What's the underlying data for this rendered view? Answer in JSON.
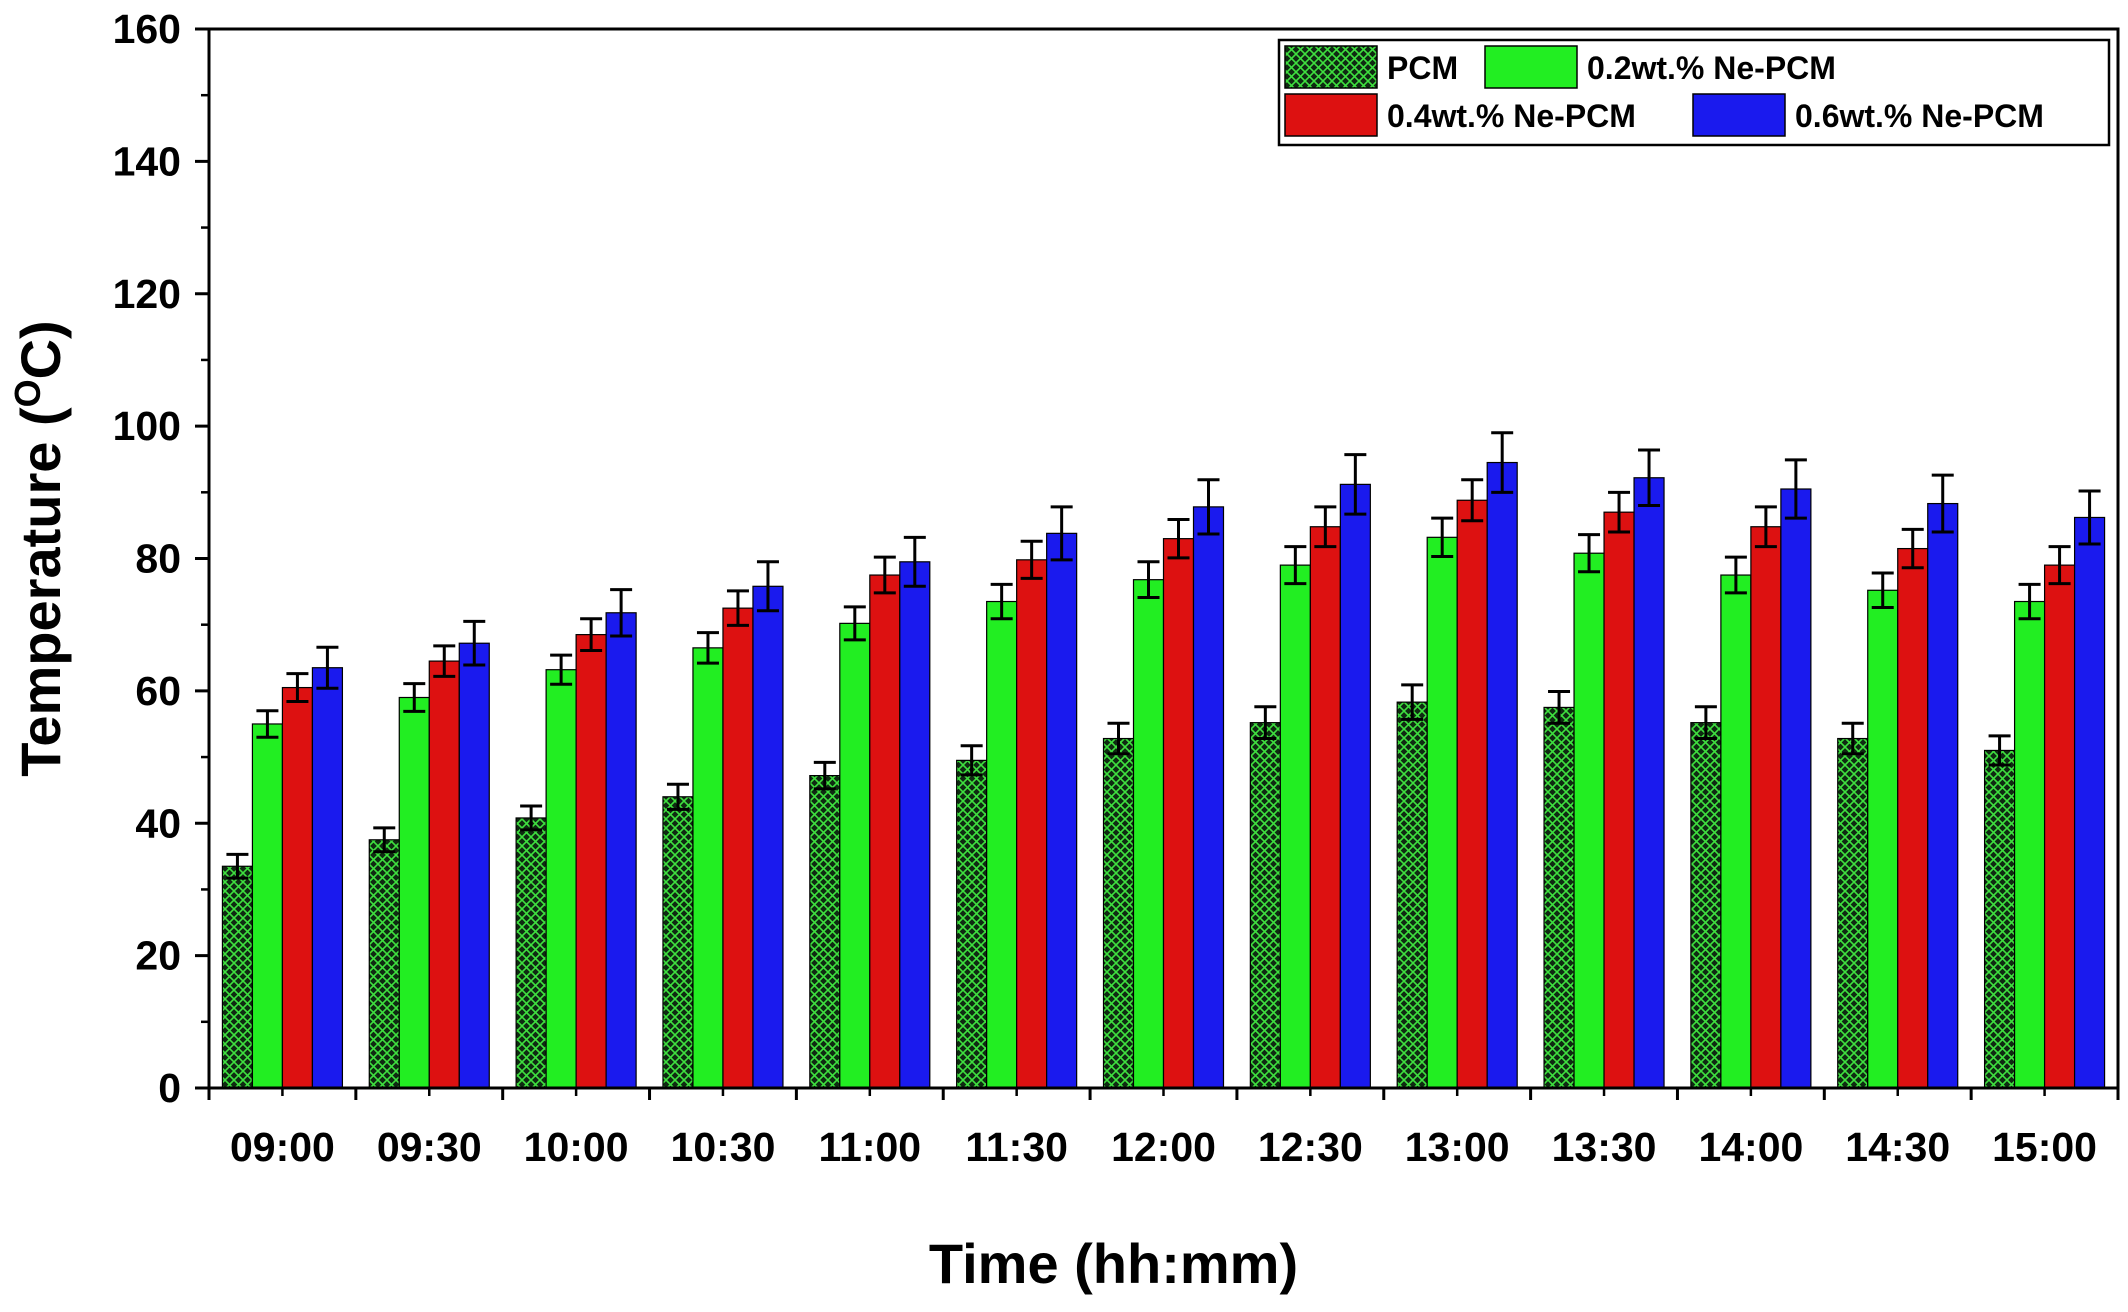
{
  "chart_data": {
    "type": "bar",
    "title": "",
    "xlabel": "Time (hh:mm)",
    "ylabel_main": "Temperature (",
    "ylabel_sup": "O",
    "ylabel_end": "C)",
    "ylim": [
      0,
      160
    ],
    "yticks": [
      "0",
      "20",
      "40",
      "60",
      "80",
      "100",
      "120",
      "140",
      "160"
    ],
    "ytick_values": [
      0,
      20,
      40,
      60,
      80,
      100,
      120,
      140,
      160
    ],
    "categories": [
      "09:00",
      "09:30",
      "10:00",
      "10:30",
      "11:00",
      "11:30",
      "12:00",
      "12:30",
      "13:00",
      "13:30",
      "14:00",
      "14:30",
      "15:00"
    ],
    "legend_position": "top-right",
    "legend_layout": "2x2 grid",
    "grid": false,
    "error_bars": true,
    "series": [
      {
        "name": "PCM",
        "color": "#1f7a2a",
        "pattern": "crosshatch-green-on-dark",
        "values": [
          33.5,
          37.5,
          40.8,
          44.0,
          47.2,
          49.5,
          52.8,
          55.2,
          58.3,
          57.5,
          55.2,
          52.8,
          51.0
        ],
        "errors": [
          1.8,
          1.8,
          1.8,
          1.9,
          2.0,
          2.2,
          2.3,
          2.4,
          2.6,
          2.4,
          2.4,
          2.3,
          2.2
        ]
      },
      {
        "name": "0.2wt.% Ne-PCM",
        "color": "#22ee22",
        "values": [
          55.0,
          59.0,
          63.2,
          66.5,
          70.2,
          73.5,
          76.8,
          79.0,
          83.2,
          80.8,
          77.5,
          75.2,
          73.5
        ],
        "errors": [
          2.0,
          2.1,
          2.2,
          2.3,
          2.5,
          2.6,
          2.7,
          2.8,
          2.9,
          2.8,
          2.7,
          2.6,
          2.6
        ]
      },
      {
        "name": "0.4wt.% Ne-PCM",
        "color": "#dd1111",
        "values": [
          60.5,
          64.5,
          68.5,
          72.5,
          77.5,
          79.8,
          83.0,
          84.8,
          88.8,
          87.0,
          84.8,
          81.5,
          79.0
        ],
        "errors": [
          2.1,
          2.3,
          2.4,
          2.6,
          2.7,
          2.8,
          2.9,
          3.0,
          3.1,
          3.0,
          3.0,
          2.9,
          2.8
        ]
      },
      {
        "name": "0.6wt.% Ne-PCM",
        "color": "#1a1aee",
        "values": [
          63.5,
          67.2,
          71.8,
          75.8,
          79.5,
          83.8,
          87.8,
          91.2,
          94.5,
          92.2,
          90.5,
          88.3,
          86.2
        ],
        "errors": [
          3.1,
          3.3,
          3.5,
          3.7,
          3.7,
          4.0,
          4.1,
          4.5,
          4.5,
          4.2,
          4.4,
          4.3,
          4.0
        ]
      }
    ]
  }
}
